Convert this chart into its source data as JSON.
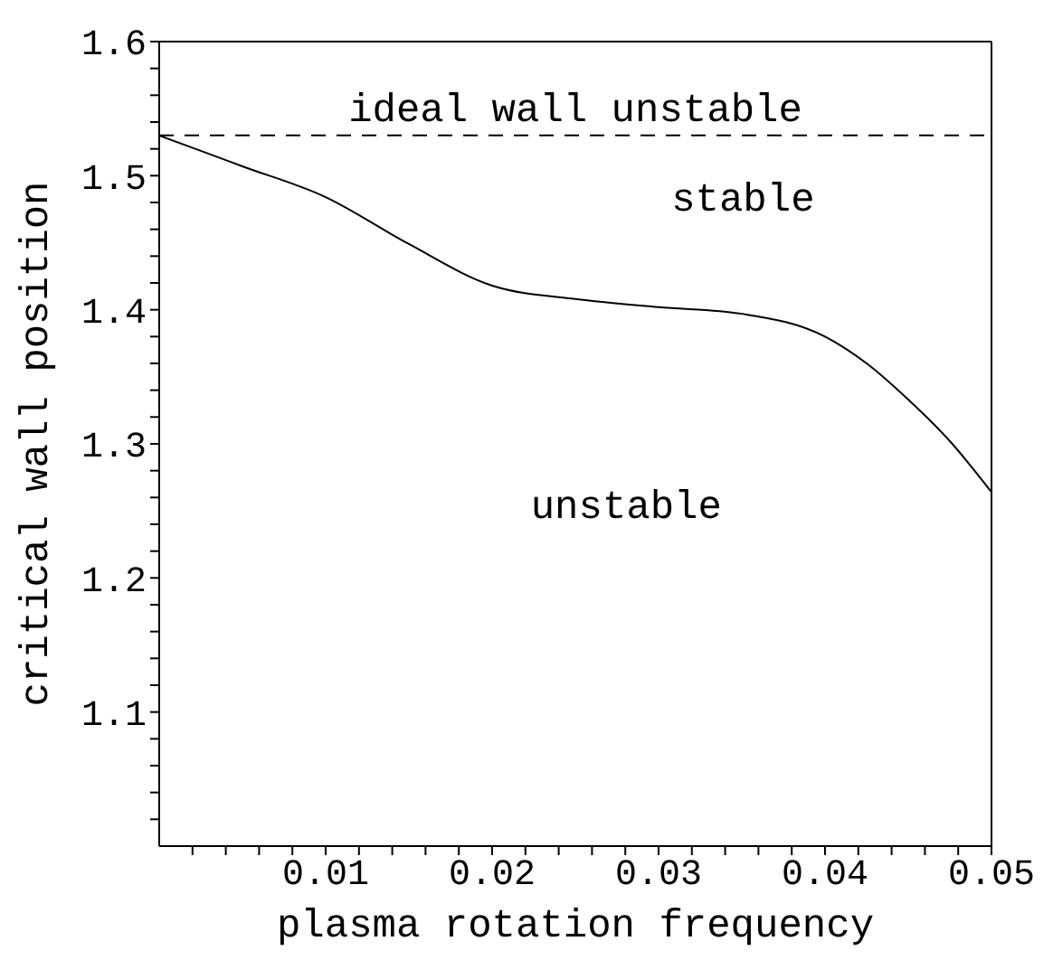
{
  "chart_data": {
    "type": "line",
    "xlabel": "plasma rotation frequency",
    "ylabel": "critical wall position",
    "x": [
      0,
      0.005,
      0.01,
      0.015,
      0.02,
      0.025,
      0.03,
      0.035,
      0.04,
      0.0425,
      0.045,
      0.0475,
      0.05
    ],
    "series": [
      {
        "color": "#000000",
        "values": [
          1.53,
          1.507,
          1.484,
          1.449,
          1.418,
          1.408,
          1.402,
          1.397,
          1.38,
          1.36,
          1.333,
          1.302,
          1.264
        ]
      }
    ],
    "xlim": [
      0,
      0.05
    ],
    "ylim": [
      1.0,
      1.6
    ],
    "xticks": [
      {
        "value": 0.002,
        "label": null
      },
      {
        "value": 0.004,
        "label": null
      },
      {
        "value": 0.006,
        "label": null
      },
      {
        "value": 0.008,
        "label": null
      },
      {
        "value": 0.01,
        "label": "0.01"
      },
      {
        "value": 0.012,
        "label": null
      },
      {
        "value": 0.014,
        "label": null
      },
      {
        "value": 0.016,
        "label": null
      },
      {
        "value": 0.018,
        "label": null
      },
      {
        "value": 0.02,
        "label": "0.02"
      },
      {
        "value": 0.022,
        "label": null
      },
      {
        "value": 0.024,
        "label": null
      },
      {
        "value": 0.026,
        "label": null
      },
      {
        "value": 0.028,
        "label": null
      },
      {
        "value": 0.03,
        "label": "0.03"
      },
      {
        "value": 0.032,
        "label": null
      },
      {
        "value": 0.034,
        "label": null
      },
      {
        "value": 0.036,
        "label": null
      },
      {
        "value": 0.038,
        "label": null
      },
      {
        "value": 0.04,
        "label": "0.04"
      },
      {
        "value": 0.042,
        "label": null
      },
      {
        "value": 0.044,
        "label": null
      },
      {
        "value": 0.046,
        "label": null
      },
      {
        "value": 0.048,
        "label": null
      },
      {
        "value": 0.05,
        "label": "0.05"
      }
    ],
    "yticks": [
      {
        "value": 1.02,
        "label": null
      },
      {
        "value": 1.04,
        "label": null
      },
      {
        "value": 1.06,
        "label": null
      },
      {
        "value": 1.08,
        "label": null
      },
      {
        "value": 1.1,
        "label": "1.1"
      },
      {
        "value": 1.12,
        "label": null
      },
      {
        "value": 1.14,
        "label": null
      },
      {
        "value": 1.16,
        "label": null
      },
      {
        "value": 1.18,
        "label": null
      },
      {
        "value": 1.2,
        "label": "1.2"
      },
      {
        "value": 1.22,
        "label": null
      },
      {
        "value": 1.24,
        "label": null
      },
      {
        "value": 1.26,
        "label": null
      },
      {
        "value": 1.28,
        "label": null
      },
      {
        "value": 1.3,
        "label": "1.3"
      },
      {
        "value": 1.32,
        "label": null
      },
      {
        "value": 1.34,
        "label": null
      },
      {
        "value": 1.36,
        "label": null
      },
      {
        "value": 1.38,
        "label": null
      },
      {
        "value": 1.4,
        "label": "1.4"
      },
      {
        "value": 1.42,
        "label": null
      },
      {
        "value": 1.44,
        "label": null
      },
      {
        "value": 1.46,
        "label": null
      },
      {
        "value": 1.48,
        "label": null
      },
      {
        "value": 1.5,
        "label": "1.5"
      },
      {
        "value": 1.52,
        "label": null
      },
      {
        "value": 1.54,
        "label": null
      },
      {
        "value": 1.56,
        "label": null
      },
      {
        "value": 1.58,
        "label": null
      },
      {
        "value": 1.6,
        "label": "1.6"
      }
    ],
    "ref_lines": [
      {
        "axis": "y",
        "value": 1.53,
        "label": "ideal wall unstable",
        "color": "#000000",
        "line_style": "dashed"
      }
    ],
    "annotations": [
      "stable",
      "unstable"
    ],
    "grid": false
  }
}
